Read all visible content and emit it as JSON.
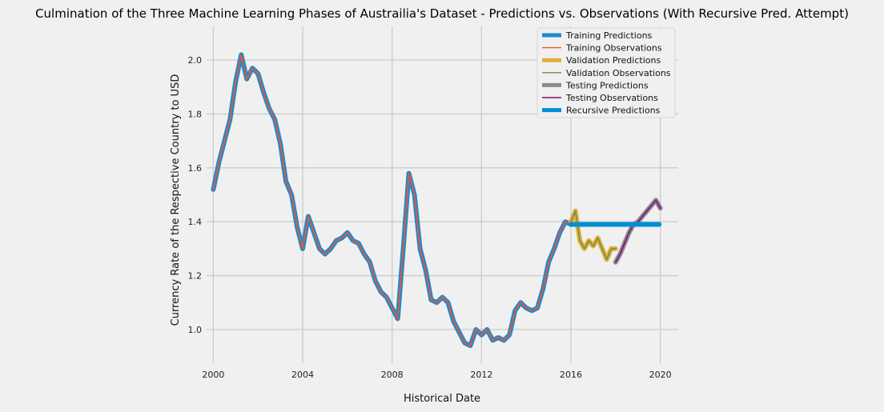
{
  "chart_data": {
    "type": "line",
    "title": "Culmination of the Three Machine Learning Phases of Austrailia's Dataset - Predictions vs. Observations (With Recursive Pred. Attempt)",
    "xlabel": "Historical Date",
    "ylabel": "Currency Rate of the Respective Country to USD",
    "xlim": [
      1999.7,
      2020.8
    ],
    "ylim": [
      0.875,
      2.125
    ],
    "x_ticks": [
      "2000",
      "2004",
      "2008",
      "2012",
      "2016",
      "2020"
    ],
    "y_ticks": [
      "1.0",
      "1.2",
      "1.4",
      "1.6",
      "1.8",
      "2.0"
    ],
    "grid": true,
    "legend_position": "top-right",
    "colors": {
      "training_predictions": "#1f8bc9",
      "training_observations": "#fc4f30",
      "validation_predictions": "#e5ae38",
      "validation_observations": "#6d904f",
      "testing_predictions": "#8b8b8b",
      "testing_observations": "#810f7c",
      "recursive_predictions": "#008fd5"
    },
    "training": {
      "x": [
        2000.0,
        2000.25,
        2000.5,
        2000.75,
        2001.0,
        2001.25,
        2001.5,
        2001.75,
        2002.0,
        2002.25,
        2002.5,
        2002.75,
        2003.0,
        2003.25,
        2003.5,
        2003.75,
        2004.0,
        2004.25,
        2004.5,
        2004.75,
        2005.0,
        2005.25,
        2005.5,
        2005.75,
        2006.0,
        2006.25,
        2006.5,
        2006.75,
        2007.0,
        2007.25,
        2007.5,
        2007.75,
        2008.0,
        2008.25,
        2008.5,
        2008.75,
        2009.0,
        2009.25,
        2009.5,
        2009.75,
        2010.0,
        2010.25,
        2010.5,
        2010.75,
        2011.0,
        2011.25,
        2011.5,
        2011.75,
        2012.0,
        2012.25,
        2012.5,
        2012.75,
        2013.0,
        2013.25,
        2013.5,
        2013.75,
        2014.0,
        2014.25,
        2014.5,
        2014.75,
        2015.0,
        2015.25,
        2015.5,
        2015.75,
        2016.0
      ],
      "y": [
        1.52,
        1.62,
        1.7,
        1.78,
        1.92,
        2.02,
        1.93,
        1.97,
        1.95,
        1.88,
        1.82,
        1.78,
        1.69,
        1.55,
        1.5,
        1.38,
        1.3,
        1.42,
        1.36,
        1.3,
        1.28,
        1.3,
        1.33,
        1.34,
        1.36,
        1.33,
        1.32,
        1.28,
        1.25,
        1.18,
        1.14,
        1.12,
        1.08,
        1.04,
        1.3,
        1.58,
        1.5,
        1.3,
        1.22,
        1.11,
        1.1,
        1.12,
        1.1,
        1.03,
        0.99,
        0.95,
        0.94,
        1.0,
        0.98,
        1.0,
        0.96,
        0.97,
        0.96,
        0.98,
        1.07,
        1.1,
        1.08,
        1.07,
        1.08,
        1.15,
        1.25,
        1.3,
        1.36,
        1.4,
        1.39
      ]
    },
    "validation": {
      "x": [
        2016.0,
        2016.2,
        2016.4,
        2016.6,
        2016.8,
        2017.0,
        2017.2,
        2017.4,
        2017.6,
        2017.8,
        2018.0
      ],
      "y": [
        1.4,
        1.44,
        1.33,
        1.3,
        1.33,
        1.31,
        1.34,
        1.3,
        1.26,
        1.3,
        1.3
      ]
    },
    "testing": {
      "x": [
        2018.0,
        2018.2,
        2018.4,
        2018.6,
        2018.8,
        2019.0,
        2019.2,
        2019.4,
        2019.6,
        2019.8,
        2020.0
      ],
      "y": [
        1.25,
        1.28,
        1.32,
        1.36,
        1.39,
        1.4,
        1.42,
        1.44,
        1.46,
        1.48,
        1.45
      ]
    },
    "recursive": {
      "x": [
        2016.0,
        2019.95
      ],
      "y": [
        1.39,
        1.39
      ]
    },
    "legend": [
      {
        "label": "Training Predictions",
        "style": "thick",
        "color_key": "training_predictions"
      },
      {
        "label": "Training Observations",
        "style": "thin",
        "color_key": "training_observations"
      },
      {
        "label": "Validation Predictions",
        "style": "thick",
        "color_key": "validation_predictions"
      },
      {
        "label": "Validation Observations",
        "style": "thin",
        "color_key": "validation_observations"
      },
      {
        "label": "Testing Predictions",
        "style": "thick",
        "color_key": "testing_predictions"
      },
      {
        "label": "Testing Observations",
        "style": "thin",
        "color_key": "testing_observations"
      },
      {
        "label": "Recursive Predictions",
        "style": "thick",
        "color_key": "recursive_predictions"
      }
    ]
  }
}
